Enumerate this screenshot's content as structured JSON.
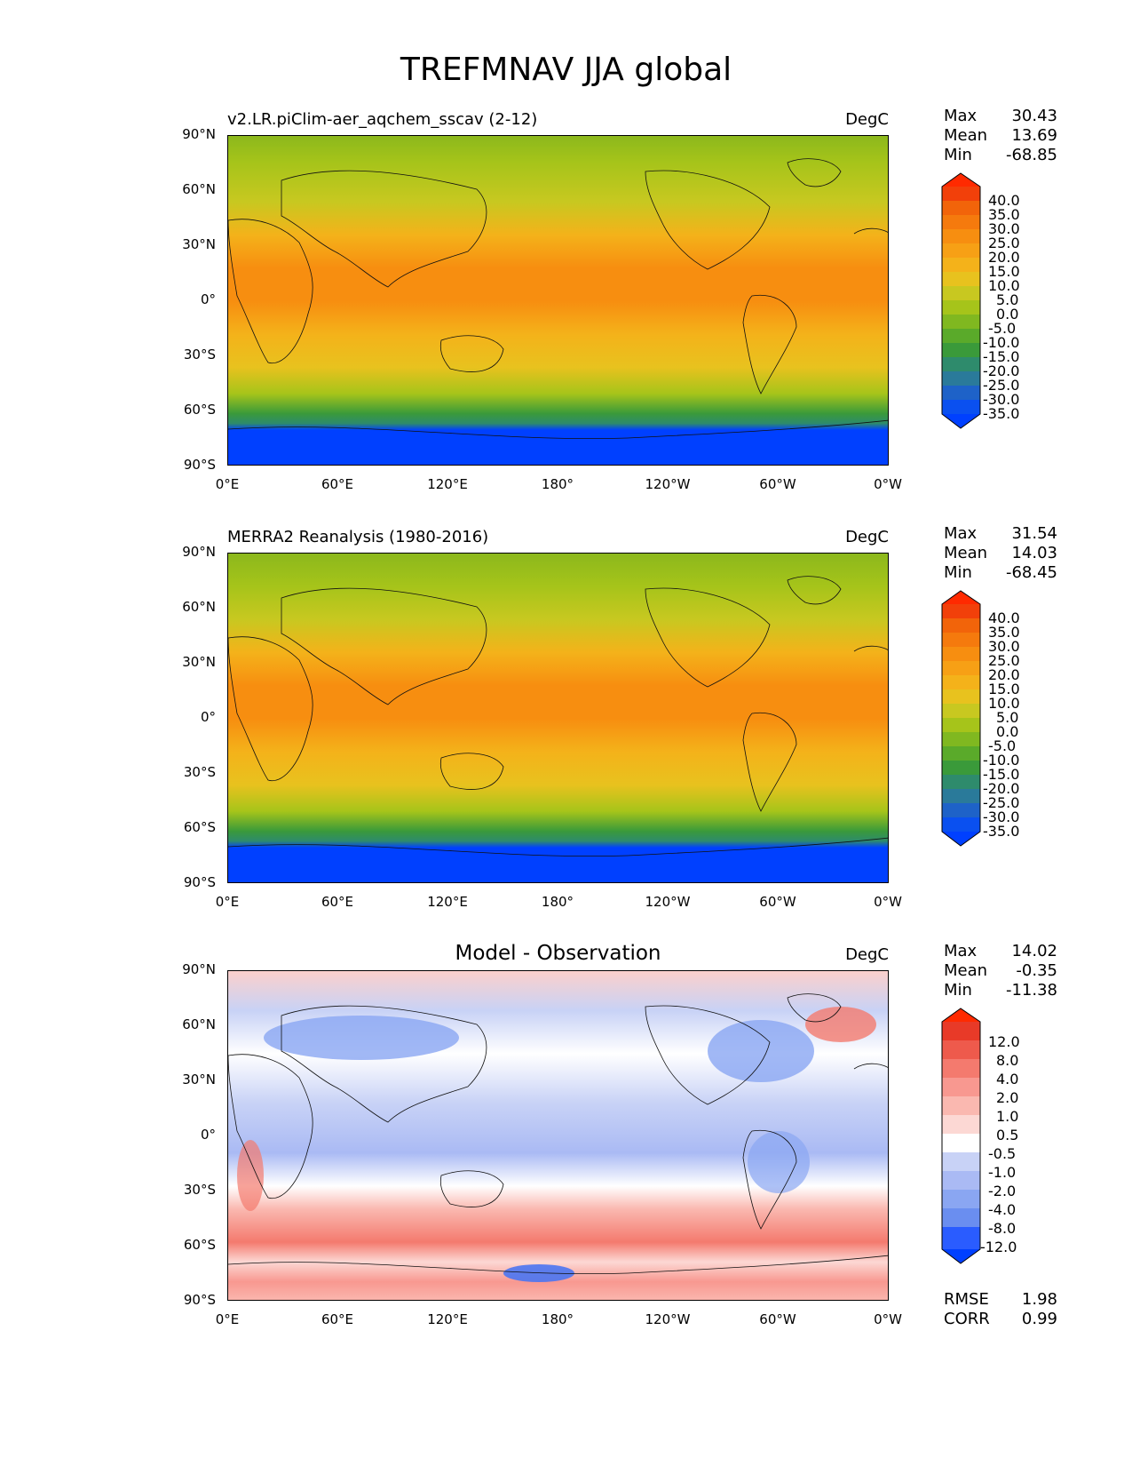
{
  "title": "TREFMNAV JJA global",
  "lat_labels": [
    "90°N",
    "60°N",
    "30°N",
    "0°",
    "30°S",
    "60°S",
    "90°S"
  ],
  "lon_labels": [
    "0°E",
    "60°E",
    "120°E",
    "180°",
    "120°W",
    "60°W",
    "0°W"
  ],
  "colors": {
    "temp_scale": [
      "#0040ff",
      "#1e62c8",
      "#2a7a9a",
      "#2e8b6c",
      "#3a9a3a",
      "#5aaa2a",
      "#80b820",
      "#a6c41a",
      "#c8c820",
      "#e8c21e",
      "#f4b21a",
      "#f7a015",
      "#f78e10",
      "#f57a0d",
      "#f2640a",
      "#ee4a08",
      "#ff2a00"
    ],
    "diff_scale": [
      "#0040ff",
      "#2a5cff",
      "#4a76f2",
      "#6a8ef0",
      "#8aa6f2",
      "#aabaf4",
      "#c8d2f6",
      "#ffffff",
      "#fcd8d4",
      "#fab8b0",
      "#f89890",
      "#f47a6e",
      "#ee5a4c",
      "#e83a28",
      "#ff2a00"
    ]
  },
  "panels": [
    {
      "title_left": "v2.LR.piClim-aer_aqchem_sscav (2-12)",
      "title_center": "",
      "units": "DegC",
      "stats": [
        {
          "label": "Max",
          "value": "30.43"
        },
        {
          "label": "Mean",
          "value": "13.69"
        },
        {
          "label": "Min",
          "value": "-68.85"
        }
      ],
      "colorbar_labels": [
        "40.0",
        "35.0",
        "30.0",
        "25.0",
        "20.0",
        "15.0",
        "10.0",
        "5.0",
        "0.0",
        "-5.0",
        "-10.0",
        "-15.0",
        "-20.0",
        "-25.0",
        "-30.0",
        "-35.0"
      ],
      "map_kind": "model"
    },
    {
      "title_left": "MERRA2 Reanalysis (1980-2016)",
      "title_center": "",
      "units": "DegC",
      "stats": [
        {
          "label": "Max",
          "value": "31.54"
        },
        {
          "label": "Mean",
          "value": "14.03"
        },
        {
          "label": "Min",
          "value": "-68.45"
        }
      ],
      "colorbar_labels": [
        "40.0",
        "35.0",
        "30.0",
        "25.0",
        "20.0",
        "15.0",
        "10.0",
        "5.0",
        "0.0",
        "-5.0",
        "-10.0",
        "-15.0",
        "-20.0",
        "-25.0",
        "-30.0",
        "-35.0"
      ],
      "map_kind": "obs"
    },
    {
      "title_left": "",
      "title_center": "Model - Observation",
      "units": "DegC",
      "stats": [
        {
          "label": "Max",
          "value": "14.02"
        },
        {
          "label": "Mean",
          "value": "-0.35"
        },
        {
          "label": "Min",
          "value": "-11.38"
        }
      ],
      "colorbar_labels": [
        "12.0",
        "8.0",
        "4.0",
        "2.0",
        "1.0",
        "0.5",
        "-0.5",
        "-1.0",
        "-2.0",
        "-4.0",
        "-8.0",
        "-12.0"
      ],
      "map_kind": "diff",
      "metrics": [
        {
          "label": "RMSE",
          "value": "1.98"
        },
        {
          "label": "CORR",
          "value": "0.99"
        }
      ]
    }
  ]
}
